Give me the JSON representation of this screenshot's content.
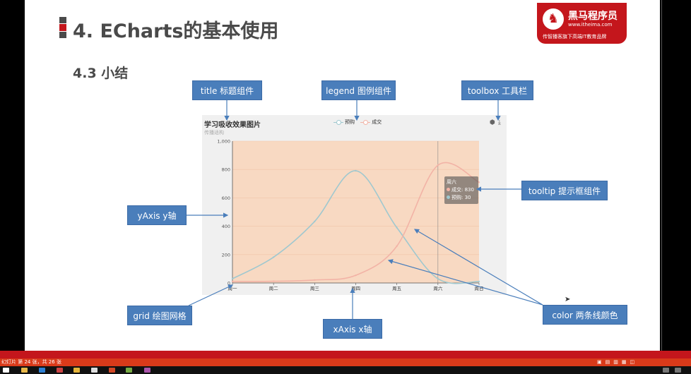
{
  "slide": {
    "title": "4. ECharts的基本使用",
    "subtitle": "4.3 小结",
    "bullet_colors": [
      "#4a4a4a",
      "#c4161c",
      "#4a4a4a"
    ]
  },
  "brand": {
    "name": "黑马程序员",
    "url": "www.itheima.com",
    "slogan": "传智播客旗下高端IT教育品牌",
    "color": "#c4161c"
  },
  "chart_data": {
    "type": "line",
    "title": "学习吸收效果图片",
    "subtitle": "传播适构",
    "categories": [
      "周一",
      "周二",
      "周三",
      "周四",
      "周五",
      "周六",
      "周日"
    ],
    "y_ticks": [
      "0",
      "200",
      "400",
      "600",
      "800",
      "1,000"
    ],
    "ylim": [
      0,
      1000
    ],
    "series": [
      {
        "name": "预购",
        "values": [
          30,
          182,
          434,
          791,
          390,
          30,
          10
        ],
        "color": "#9fc8cf"
      },
      {
        "name": "成交",
        "values": [
          10,
          12,
          21,
          54,
          260,
          830,
          710
        ],
        "color": "#f2b3a6"
      }
    ],
    "area_color": "#f8d9c2",
    "tooltip": {
      "title": "周六",
      "rows": [
        {
          "label": "成交: 830",
          "color": "#f2b3a6"
        },
        {
          "label": "预购: 30",
          "color": "#9fc8cf"
        }
      ]
    },
    "toolbox_icons": [
      "cube-icon",
      "download-icon"
    ]
  },
  "callouts": {
    "title": "title 标题组件",
    "legend": "legend 图例组件",
    "toolbox": "toolbox 工具栏",
    "tooltip": "tooltip 提示框组件",
    "yaxis": "yAxis y轴",
    "grid": "grid 绘图网格",
    "xaxis": "xAxis x轴",
    "color": "color 两条线颜色",
    "color_hex": "#4a7ebb"
  },
  "status_bar": {
    "text": "幻灯片 第 24 张，共 26 张"
  }
}
